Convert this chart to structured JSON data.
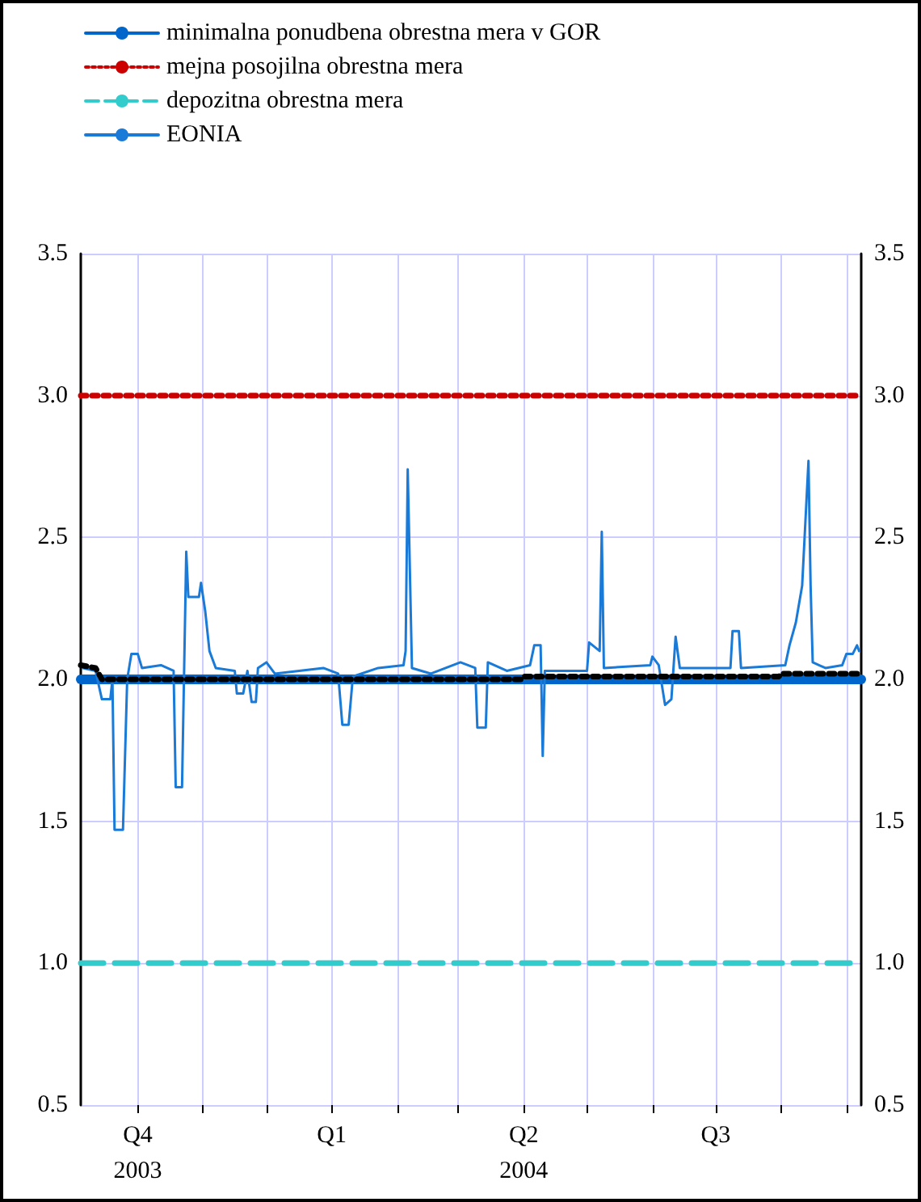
{
  "chart_data": {
    "type": "line",
    "xlim": [
      "2003-09-04",
      "2004-09-08"
    ],
    "xticks": [
      {
        "value": "2003-10-01",
        "label": "Q4\n2003"
      },
      {
        "value": "2003-11-01",
        "label": null
      },
      {
        "value": "2003-12-01",
        "label": null
      },
      {
        "value": "2004-01-01",
        "label": "Q1"
      },
      {
        "value": "2004-02-01",
        "label": null
      },
      {
        "value": "2004-03-01",
        "label": null
      },
      {
        "value": "2004-04-01",
        "label": "Q2\n2004"
      },
      {
        "value": "2004-05-01",
        "label": null
      },
      {
        "value": "2004-06-01",
        "label": null
      },
      {
        "value": "2004-07-01",
        "label": "Q3"
      },
      {
        "value": "2004-08-01",
        "label": null
      },
      {
        "value": "2004-09-01",
        "label": null
      }
    ],
    "ylim": [
      0.5,
      3.5
    ],
    "yticks": [
      {
        "value": 0.5,
        "label": "0.5"
      },
      {
        "value": 1,
        "label": "1.0"
      },
      {
        "value": 1.5,
        "label": "1.5"
      },
      {
        "value": 2,
        "label": "2.0"
      },
      {
        "value": 2.5,
        "label": "2.5"
      },
      {
        "value": 3,
        "label": "3.0"
      },
      {
        "value": 3.5,
        "label": "3.5"
      }
    ],
    "y2lim": [
      0.5,
      3.5
    ],
    "y2ticks": [
      {
        "value": 0.5,
        "label": "0.5"
      },
      {
        "value": 1,
        "label": "1.0"
      },
      {
        "value": 1.5,
        "label": "1.5"
      },
      {
        "value": 2,
        "label": "2.0"
      },
      {
        "value": 2.5,
        "label": "2.5"
      },
      {
        "value": 3,
        "label": "3.0"
      },
      {
        "value": 3.5,
        "label": "3.5"
      }
    ],
    "grid": true,
    "legend": "top left",
    "marker": "none",
    "series": [
      {
        "name": "minimalna ponudbena obrestna mera v GOR",
        "color": "#0066cc",
        "line_style": "solid",
        "x": [
          "2003-09-04",
          "2004-09-08"
        ],
        "values": [
          2.0,
          2.0
        ]
      },
      {
        "name": "mejna posojilna obrestna mera",
        "color": "#cc0000",
        "line_style": "dotted",
        "x": [
          "2003-09-04",
          "2004-09-08"
        ],
        "values": [
          3.0,
          3.0
        ]
      },
      {
        "name": "depozitna obrestna mera",
        "color": "#33cccc",
        "line_style": "dashed",
        "x": [
          "2003-09-04",
          "2004-09-08"
        ],
        "values": [
          1.0,
          1.0
        ]
      },
      {
        "name": "EONIA",
        "color": "#1a7ad8",
        "line_style": "solid",
        "x": [
          "2003-09-05",
          "2003-09-11",
          "2003-09-14",
          "2003-09-18",
          "2003-09-19",
          "2003-09-20",
          "2003-09-24",
          "2003-09-26",
          "2003-09-28",
          "2003-10-01",
          "2003-10-03",
          "2003-10-12",
          "2003-10-18",
          "2003-10-19",
          "2003-10-22",
          "2003-10-24",
          "2003-10-25",
          "2003-10-30",
          "2003-10-31",
          "2003-11-02",
          "2003-11-04",
          "2003-11-07",
          "2003-11-16",
          "2003-11-17",
          "2003-11-20",
          "2003-11-22",
          "2003-11-24",
          "2003-11-26",
          "2003-11-27",
          "2003-12-01",
          "2003-12-05",
          "2003-12-28",
          "2004-01-04",
          "2004-01-06",
          "2004-01-09",
          "2004-01-11",
          "2004-01-23",
          "2004-02-04",
          "2004-02-05",
          "2004-02-06",
          "2004-02-08",
          "2004-02-17",
          "2004-03-02",
          "2004-03-09",
          "2004-03-10",
          "2004-03-14",
          "2004-03-15",
          "2004-03-24",
          "2004-04-04",
          "2004-04-06",
          "2004-04-09",
          "2004-04-10",
          "2004-04-11",
          "2004-05-01",
          "2004-05-02",
          "2004-05-07",
          "2004-05-08",
          "2004-05-09",
          "2004-05-31",
          "2004-06-01",
          "2004-06-04",
          "2004-06-07",
          "2004-06-10",
          "2004-06-12",
          "2004-06-14",
          "2004-07-08",
          "2004-07-09",
          "2004-07-12",
          "2004-07-13",
          "2004-08-03",
          "2004-08-05",
          "2004-08-08",
          "2004-08-11",
          "2004-08-14",
          "2004-08-15",
          "2004-08-16",
          "2004-08-22",
          "2004-08-30",
          "2004-09-01",
          "2004-09-04",
          "2004-09-06",
          "2004-09-07"
        ],
        "values": [
          2.04,
          2.03,
          1.93,
          1.93,
          2.0,
          1.47,
          1.47,
          2.0,
          2.09,
          2.09,
          2.04,
          2.05,
          2.03,
          1.62,
          1.62,
          2.45,
          2.29,
          2.29,
          2.34,
          2.24,
          2.1,
          2.04,
          2.03,
          1.95,
          1.95,
          2.03,
          1.92,
          1.92,
          2.04,
          2.06,
          2.02,
          2.04,
          2.02,
          1.84,
          1.84,
          2.01,
          2.04,
          2.05,
          2.1,
          2.74,
          2.04,
          2.02,
          2.06,
          2.04,
          1.83,
          1.83,
          2.06,
          2.03,
          2.05,
          2.12,
          2.12,
          1.73,
          2.03,
          2.03,
          2.13,
          2.1,
          2.52,
          2.04,
          2.05,
          2.08,
          2.05,
          1.91,
          1.93,
          2.15,
          2.04,
          2.04,
          2.17,
          2.17,
          2.04,
          2.05,
          2.12,
          2.2,
          2.33,
          2.77,
          2.33,
          2.06,
          2.04,
          2.05,
          2.09,
          2.09,
          2.12,
          2.1
        ]
      },
      {
        "color": "#000000",
        "line_style": "dotted",
        "x": [
          "2003-09-04",
          "2003-09-11",
          "2003-09-14",
          "2004-03-31",
          "2004-04-01",
          "2004-07-31",
          "2004-08-01",
          "2004-09-08"
        ],
        "values": [
          2.05,
          2.04,
          2.0,
          2.0,
          2.01,
          2.01,
          2.02,
          2.02
        ]
      }
    ]
  }
}
